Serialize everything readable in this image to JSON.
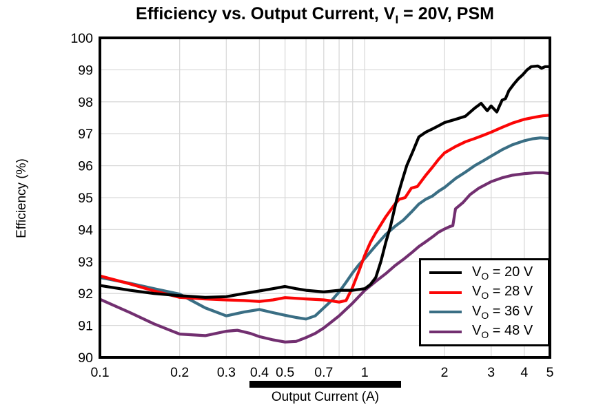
{
  "title": {
    "pre": "Efficiency vs. Output Current, V",
    "sub": "I",
    "post": " = 20V, PSM"
  },
  "chart_data": {
    "type": "line",
    "x_scale": "log",
    "xlabel": "Output Current (A)",
    "ylabel": "Efficiency (%)",
    "xlim": [
      0.1,
      5
    ],
    "ylim": [
      90,
      100
    ],
    "grid": true,
    "grid_color": "#d9d9d9",
    "frame_color": "#000000",
    "x_ticks": [
      {
        "v": 0.1,
        "label": "0.1"
      },
      {
        "v": 0.2,
        "label": "0.2"
      },
      {
        "v": 0.3,
        "label": "0.3"
      },
      {
        "v": 0.4,
        "label": "0.4"
      },
      {
        "v": 0.5,
        "label": "0.5"
      },
      {
        "v": 0.7,
        "label": "0.7"
      },
      {
        "v": 1,
        "label": "1"
      },
      {
        "v": 2,
        "label": "2"
      },
      {
        "v": 3,
        "label": "3"
      },
      {
        "v": 4,
        "label": "4"
      },
      {
        "v": 5,
        "label": "5"
      }
    ],
    "y_ticks": [
      {
        "v": 90,
        "label": "90"
      },
      {
        "v": 91,
        "label": "91"
      },
      {
        "v": 92,
        "label": "92"
      },
      {
        "v": 93,
        "label": "93"
      },
      {
        "v": 94,
        "label": "94"
      },
      {
        "v": 95,
        "label": "95"
      },
      {
        "v": 96,
        "label": "96"
      },
      {
        "v": 97,
        "label": "97"
      },
      {
        "v": 98,
        "label": "98"
      },
      {
        "v": 99,
        "label": "99"
      },
      {
        "v": 100,
        "label": "100"
      }
    ],
    "x_gridlines": [
      0.2,
      0.3,
      0.4,
      0.5,
      0.6,
      0.7,
      0.8,
      0.9,
      1,
      2,
      3,
      4
    ],
    "y_gridlines": [
      91,
      92,
      93,
      94,
      95,
      96,
      97,
      98,
      99
    ],
    "legend_position": "lower right",
    "series": [
      {
        "name": "VO = 20 V",
        "label": {
          "pre": "V",
          "sub": "O",
          "post": " = 20 V"
        },
        "color": "#000000",
        "points": [
          [
            0.1,
            92.25
          ],
          [
            0.13,
            92.1
          ],
          [
            0.16,
            92.0
          ],
          [
            0.2,
            91.93
          ],
          [
            0.25,
            91.88
          ],
          [
            0.3,
            91.9
          ],
          [
            0.35,
            92.0
          ],
          [
            0.4,
            92.08
          ],
          [
            0.45,
            92.15
          ],
          [
            0.5,
            92.22
          ],
          [
            0.55,
            92.15
          ],
          [
            0.6,
            92.1
          ],
          [
            0.7,
            92.05
          ],
          [
            0.8,
            92.1
          ],
          [
            0.9,
            92.1
          ],
          [
            1.0,
            92.15
          ],
          [
            1.05,
            92.28
          ],
          [
            1.1,
            92.5
          ],
          [
            1.15,
            93.0
          ],
          [
            1.2,
            93.6
          ],
          [
            1.25,
            94.1
          ],
          [
            1.32,
            94.95
          ],
          [
            1.38,
            95.5
          ],
          [
            1.44,
            96.0
          ],
          [
            1.52,
            96.45
          ],
          [
            1.6,
            96.9
          ],
          [
            1.7,
            97.05
          ],
          [
            1.8,
            97.15
          ],
          [
            1.9,
            97.25
          ],
          [
            2.0,
            97.35
          ],
          [
            2.2,
            97.45
          ],
          [
            2.4,
            97.55
          ],
          [
            2.6,
            97.8
          ],
          [
            2.75,
            97.95
          ],
          [
            2.9,
            97.72
          ],
          [
            3.0,
            97.87
          ],
          [
            3.15,
            97.68
          ],
          [
            3.3,
            98.05
          ],
          [
            3.4,
            98.1
          ],
          [
            3.5,
            98.35
          ],
          [
            3.65,
            98.55
          ],
          [
            3.8,
            98.72
          ],
          [
            3.95,
            98.85
          ],
          [
            4.1,
            99.0
          ],
          [
            4.25,
            99.1
          ],
          [
            4.5,
            99.12
          ],
          [
            4.65,
            99.05
          ],
          [
            4.8,
            99.1
          ],
          [
            5,
            99.1
          ]
        ]
      },
      {
        "name": "VO = 28 V",
        "label": {
          "pre": "V",
          "sub": "O",
          "post": " = 28 V"
        },
        "color": "#fb0606",
        "points": [
          [
            0.1,
            92.55
          ],
          [
            0.13,
            92.3
          ],
          [
            0.16,
            92.08
          ],
          [
            0.2,
            91.88
          ],
          [
            0.25,
            91.83
          ],
          [
            0.3,
            91.8
          ],
          [
            0.35,
            91.78
          ],
          [
            0.4,
            91.75
          ],
          [
            0.45,
            91.8
          ],
          [
            0.5,
            91.87
          ],
          [
            0.55,
            91.85
          ],
          [
            0.6,
            91.83
          ],
          [
            0.7,
            91.8
          ],
          [
            0.75,
            91.77
          ],
          [
            0.8,
            91.73
          ],
          [
            0.85,
            91.78
          ],
          [
            0.9,
            92.2
          ],
          [
            0.95,
            92.7
          ],
          [
            1.0,
            93.2
          ],
          [
            1.05,
            93.6
          ],
          [
            1.1,
            93.9
          ],
          [
            1.2,
            94.4
          ],
          [
            1.3,
            94.8
          ],
          [
            1.35,
            94.95
          ],
          [
            1.42,
            95.0
          ],
          [
            1.5,
            95.3
          ],
          [
            1.58,
            95.35
          ],
          [
            1.7,
            95.7
          ],
          [
            1.8,
            95.95
          ],
          [
            1.9,
            96.2
          ],
          [
            2.0,
            96.4
          ],
          [
            2.2,
            96.6
          ],
          [
            2.4,
            96.75
          ],
          [
            2.6,
            96.85
          ],
          [
            2.8,
            96.95
          ],
          [
            3.0,
            97.05
          ],
          [
            3.3,
            97.2
          ],
          [
            3.6,
            97.33
          ],
          [
            4.0,
            97.45
          ],
          [
            4.4,
            97.52
          ],
          [
            4.7,
            97.56
          ],
          [
            5,
            97.58
          ]
        ]
      },
      {
        "name": "VO = 36 V",
        "label": {
          "pre": "V",
          "sub": "O",
          "post": " = 36 V"
        },
        "color": "#3a6e84",
        "points": [
          [
            0.1,
            92.5
          ],
          [
            0.13,
            92.32
          ],
          [
            0.16,
            92.15
          ],
          [
            0.2,
            91.98
          ],
          [
            0.25,
            91.55
          ],
          [
            0.3,
            91.3
          ],
          [
            0.35,
            91.42
          ],
          [
            0.4,
            91.5
          ],
          [
            0.45,
            91.4
          ],
          [
            0.5,
            91.32
          ],
          [
            0.55,
            91.25
          ],
          [
            0.6,
            91.2
          ],
          [
            0.65,
            91.3
          ],
          [
            0.7,
            91.55
          ],
          [
            0.75,
            91.78
          ],
          [
            0.8,
            92.05
          ],
          [
            0.85,
            92.35
          ],
          [
            0.9,
            92.65
          ],
          [
            0.95,
            92.9
          ],
          [
            1.0,
            93.1
          ],
          [
            1.1,
            93.5
          ],
          [
            1.2,
            93.85
          ],
          [
            1.3,
            94.1
          ],
          [
            1.4,
            94.3
          ],
          [
            1.5,
            94.55
          ],
          [
            1.6,
            94.8
          ],
          [
            1.7,
            94.95
          ],
          [
            1.8,
            95.05
          ],
          [
            1.9,
            95.2
          ],
          [
            2.0,
            95.32
          ],
          [
            2.2,
            95.6
          ],
          [
            2.4,
            95.8
          ],
          [
            2.6,
            96.0
          ],
          [
            2.8,
            96.15
          ],
          [
            3.0,
            96.3
          ],
          [
            3.3,
            96.5
          ],
          [
            3.6,
            96.65
          ],
          [
            4.0,
            96.78
          ],
          [
            4.3,
            96.84
          ],
          [
            4.6,
            96.87
          ],
          [
            5,
            96.85
          ]
        ]
      },
      {
        "name": "VO = 48 V",
        "label": {
          "pre": "V",
          "sub": "O",
          "post": " = 48 V"
        },
        "color": "#722f70",
        "points": [
          [
            0.1,
            91.82
          ],
          [
            0.13,
            91.4
          ],
          [
            0.16,
            91.05
          ],
          [
            0.2,
            90.73
          ],
          [
            0.25,
            90.68
          ],
          [
            0.3,
            90.82
          ],
          [
            0.33,
            90.85
          ],
          [
            0.37,
            90.75
          ],
          [
            0.4,
            90.65
          ],
          [
            0.45,
            90.55
          ],
          [
            0.5,
            90.48
          ],
          [
            0.55,
            90.5
          ],
          [
            0.6,
            90.62
          ],
          [
            0.65,
            90.75
          ],
          [
            0.7,
            90.92
          ],
          [
            0.8,
            91.3
          ],
          [
            0.9,
            91.7
          ],
          [
            1.0,
            92.1
          ],
          [
            1.1,
            92.38
          ],
          [
            1.2,
            92.62
          ],
          [
            1.3,
            92.87
          ],
          [
            1.4,
            93.07
          ],
          [
            1.5,
            93.27
          ],
          [
            1.6,
            93.47
          ],
          [
            1.7,
            93.62
          ],
          [
            1.8,
            93.77
          ],
          [
            1.9,
            93.92
          ],
          [
            2.0,
            94.02
          ],
          [
            2.1,
            94.1
          ],
          [
            2.15,
            94.12
          ],
          [
            2.2,
            94.65
          ],
          [
            2.35,
            94.85
          ],
          [
            2.5,
            95.1
          ],
          [
            2.7,
            95.3
          ],
          [
            3.0,
            95.5
          ],
          [
            3.3,
            95.62
          ],
          [
            3.6,
            95.7
          ],
          [
            4.0,
            95.75
          ],
          [
            4.4,
            95.78
          ],
          [
            4.7,
            95.78
          ],
          [
            5,
            95.75
          ]
        ]
      }
    ],
    "annotations": [
      "solid black bar drawn under the x-axis tick labels spanning approximately 0.4 A to 1.4 A"
    ]
  }
}
